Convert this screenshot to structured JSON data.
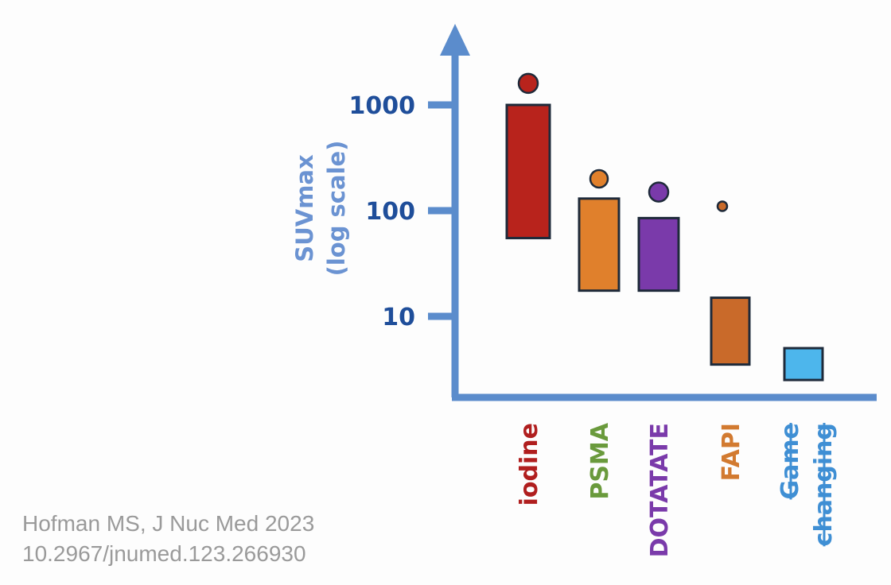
{
  "chart_data": {
    "type": "bar",
    "ylabel_lines": [
      "SUVmax",
      "(log scale)"
    ],
    "yscale": "log",
    "ylim": [
      2.2,
      4000
    ],
    "yticks": [
      {
        "value": 1000,
        "label": "1000"
      },
      {
        "value": 100,
        "label": "100"
      },
      {
        "value": 10,
        "label": "10"
      }
    ],
    "grid": false,
    "categories": [
      {
        "label": "iodine",
        "low": 55,
        "high": 1000,
        "marker": 1600,
        "marker_size": "large",
        "color": "#b8231c",
        "label_color": "#b01e1e",
        "strikethrough": false
      },
      {
        "label": "PSMA",
        "low": 17.5,
        "high": 130,
        "marker": 200,
        "marker_size": "medium",
        "color": "#e0802c",
        "label_color": "#6a9a3c",
        "strikethrough": false
      },
      {
        "label": "DOTATATE",
        "low": 17.5,
        "high": 85,
        "marker": 150,
        "marker_size": "large",
        "color": "#7a3aaa",
        "label_color": "#7a3aaa",
        "strikethrough": false
      },
      {
        "label": "FAPI",
        "low": 3.5,
        "high": 15,
        "marker": 110,
        "marker_size": "small",
        "color": "#c96a2a",
        "label_color": "#d27a30",
        "strikethrough": false
      },
      {
        "label_lines": [
          "Game",
          "changing"
        ],
        "low": 2.5,
        "high": 5,
        "marker": null,
        "color": "#4db6ec",
        "label_color": "#3f8fd4",
        "strikethrough": true
      }
    ],
    "colors": {
      "axis": "#5b8ccc",
      "tick_text": "#1f4e9a",
      "ylabel": "#6b93d2",
      "outline": "#1e2a3a"
    }
  },
  "citation": {
    "line1": "Hofman MS, J Nuc Med 2023",
    "line2": "10.2967/jnumed.123.266930"
  }
}
